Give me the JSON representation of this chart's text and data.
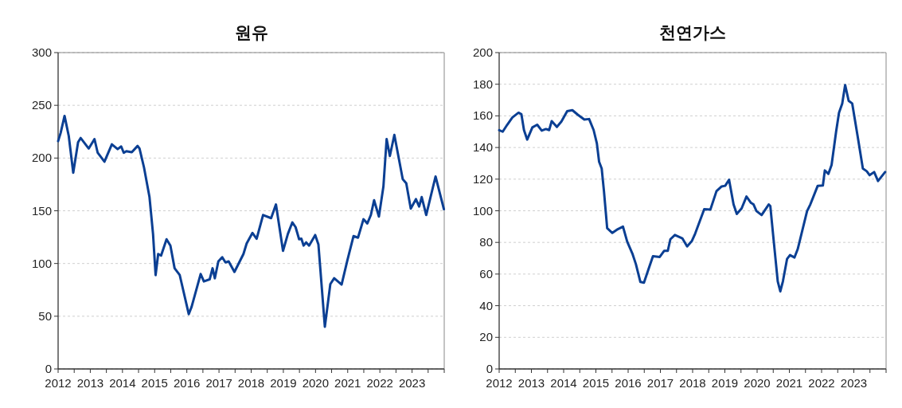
{
  "chart_data": [
    {
      "type": "line",
      "title": "원유",
      "xlim": [
        2012,
        2024
      ],
      "ylim": [
        0,
        300
      ],
      "yticks": [
        0,
        50,
        100,
        150,
        200,
        250,
        300
      ],
      "xticks": [
        2012,
        {
          "value": 2012.5,
          "label": null
        },
        2013,
        {
          "value": 2013.5,
          "label": null
        },
        2014,
        {
          "value": 2014.5,
          "label": null
        },
        2015,
        {
          "value": 2015.5,
          "label": null
        },
        2016,
        {
          "value": 2016.5,
          "label": null
        },
        2017,
        {
          "value": 2017.5,
          "label": null
        },
        2018,
        {
          "value": 2018.5,
          "label": null
        },
        2019,
        {
          "value": 2019.5,
          "label": null
        },
        2020,
        {
          "value": 2020.5,
          "label": null
        },
        2021,
        {
          "value": 2021.5,
          "label": null
        },
        2022,
        {
          "value": 2022.5,
          "label": null
        },
        2023,
        {
          "value": 2023.5,
          "label": null
        },
        {
          "value": 2024,
          "label": null
        }
      ],
      "grid": "y",
      "series": [
        {
          "color": "#0b3f93",
          "x": [
            2012.0,
            2012.08,
            2012.2,
            2012.33,
            2012.47,
            2012.62,
            2012.7,
            2012.95,
            2013.13,
            2013.23,
            2013.44,
            2013.67,
            2013.85,
            2013.96,
            2014.04,
            2014.12,
            2014.29,
            2014.47,
            2014.53,
            2014.67,
            2014.84,
            2014.95,
            2015.03,
            2015.11,
            2015.2,
            2015.37,
            2015.49,
            2015.62,
            2015.78,
            2016.06,
            2016.15,
            2016.43,
            2016.53,
            2016.71,
            2016.8,
            2016.87,
            2016.98,
            2017.1,
            2017.2,
            2017.3,
            2017.48,
            2017.76,
            2017.86,
            2018.04,
            2018.17,
            2018.37,
            2018.62,
            2018.77,
            2018.99,
            2019.14,
            2019.28,
            2019.38,
            2019.49,
            2019.56,
            2019.63,
            2019.71,
            2019.8,
            2019.99,
            2020.09,
            2020.29,
            2020.46,
            2020.58,
            2020.81,
            2020.99,
            2021.18,
            2021.32,
            2021.49,
            2021.61,
            2021.72,
            2021.82,
            2021.97,
            2022.11,
            2022.21,
            2022.31,
            2022.45,
            2022.71,
            2022.82,
            2022.96,
            2023.12,
            2023.22,
            2023.3,
            2023.44,
            2023.73,
            2023.99
          ],
          "values": [
            216,
            224,
            240,
            221,
            186,
            215,
            219,
            209,
            218,
            205,
            196.5,
            213,
            208.5,
            211,
            205,
            206.5,
            205.5,
            211.5,
            209,
            191,
            163,
            128,
            89,
            109,
            107.5,
            123,
            117,
            95.5,
            89,
            52,
            59,
            90,
            83,
            85,
            95.5,
            86,
            102,
            106,
            101,
            102,
            92,
            109,
            119,
            129,
            123.5,
            146,
            143,
            156,
            112,
            128,
            139,
            134.5,
            123,
            123.5,
            117,
            120,
            117,
            127,
            118,
            40,
            80.5,
            86,
            80,
            103,
            126,
            124.5,
            142,
            138,
            146,
            160,
            144.5,
            173,
            218,
            202,
            222,
            180,
            176,
            152,
            161,
            154,
            163,
            146,
            182.5,
            151.5
          ]
        }
      ]
    },
    {
      "type": "line",
      "title": "천연가스",
      "xlim": [
        2012,
        2024
      ],
      "ylim": [
        0,
        200
      ],
      "yticks": [
        0,
        20,
        40,
        60,
        80,
        100,
        120,
        140,
        160,
        180,
        200
      ],
      "xticks": [
        2012,
        {
          "value": 2012.5,
          "label": null
        },
        2013,
        {
          "value": 2013.5,
          "label": null
        },
        2014,
        {
          "value": 2014.5,
          "label": null
        },
        2015,
        {
          "value": 2015.5,
          "label": null
        },
        2016,
        {
          "value": 2016.5,
          "label": null
        },
        2017,
        {
          "value": 2017.5,
          "label": null
        },
        2018,
        {
          "value": 2018.5,
          "label": null
        },
        2019,
        {
          "value": 2019.5,
          "label": null
        },
        2020,
        {
          "value": 2020.5,
          "label": null
        },
        2021,
        {
          "value": 2021.5,
          "label": null
        },
        2022,
        {
          "value": 2022.5,
          "label": null
        },
        2023,
        {
          "value": 2023.5,
          "label": null
        },
        {
          "value": 2024,
          "label": null
        }
      ],
      "grid": "y",
      "series": [
        {
          "color": "#0b3f93",
          "x": [
            2012.0,
            2012.11,
            2012.25,
            2012.41,
            2012.6,
            2012.69,
            2012.77,
            2012.87,
            2013.03,
            2013.18,
            2013.32,
            2013.45,
            2013.55,
            2013.63,
            2013.79,
            2013.93,
            2014.11,
            2014.27,
            2014.44,
            2014.64,
            2014.79,
            2014.93,
            2015.03,
            2015.1,
            2015.18,
            2015.25,
            2015.35,
            2015.51,
            2015.68,
            2015.84,
            2015.97,
            2016.13,
            2016.24,
            2016.38,
            2016.49,
            2016.63,
            2016.77,
            2016.98,
            2017.12,
            2017.23,
            2017.31,
            2017.45,
            2017.68,
            2017.83,
            2017.98,
            2018.08,
            2018.36,
            2018.55,
            2018.74,
            2018.9,
            2019.01,
            2019.13,
            2019.27,
            2019.37,
            2019.52,
            2019.67,
            2019.81,
            2019.89,
            2019.98,
            2020.14,
            2020.36,
            2020.41,
            2020.51,
            2020.64,
            2020.72,
            2020.8,
            2020.93,
            2021.02,
            2021.16,
            2021.26,
            2021.55,
            2021.65,
            2021.88,
            2022.04,
            2022.1,
            2022.21,
            2022.31,
            2022.45,
            2022.54,
            2022.64,
            2022.73,
            2022.84,
            2022.95,
            2023.12,
            2023.28,
            2023.4,
            2023.49,
            2023.63,
            2023.75,
            2023.97
          ],
          "values": [
            151,
            150,
            154.4,
            159,
            162,
            161,
            151,
            145,
            152.7,
            154.4,
            150.7,
            151.7,
            151,
            156.7,
            153,
            156.4,
            163,
            163.6,
            160.7,
            157.7,
            158,
            151,
            142.6,
            131,
            126.7,
            112.4,
            89,
            86,
            88.4,
            90,
            80.5,
            73,
            66.3,
            55,
            54.5,
            63,
            71.3,
            70.8,
            74.7,
            74.7,
            82,
            84.7,
            82.6,
            77.5,
            81,
            85.6,
            101,
            100.7,
            112.4,
            115.4,
            115.8,
            119.6,
            104,
            98,
            101.5,
            109,
            105,
            104,
            99.8,
            97.3,
            104,
            103,
            82,
            55.4,
            49,
            55.4,
            69.6,
            72,
            70.5,
            75.8,
            99.8,
            104,
            115.8,
            116,
            125.5,
            123.3,
            129,
            150,
            162,
            167.8,
            179.5,
            169.5,
            167.8,
            146.8,
            126.7,
            125,
            122.5,
            124.5,
            118.8,
            124.5
          ]
        }
      ]
    }
  ]
}
